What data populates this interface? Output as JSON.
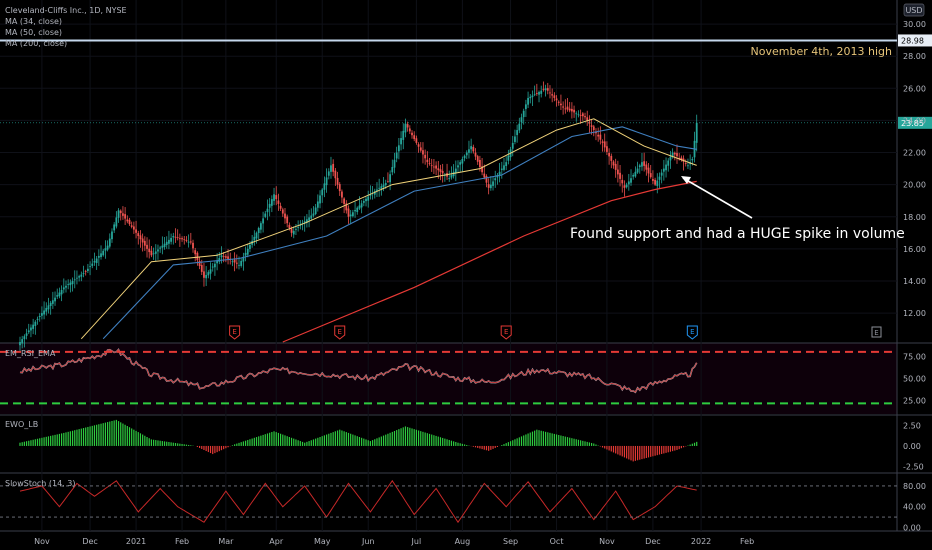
{
  "chart_data": {
    "type": "candlestick",
    "instrument": "Cleveland-Cliffs Inc., 1D, NYSE",
    "currency": "USD",
    "overlays": [
      "MA (34, close)",
      "MA (50, close)",
      "MA (200, close)"
    ],
    "x_ticks": [
      "Nov",
      "Dec",
      "2021",
      "Feb",
      "Mar",
      "Apr",
      "May",
      "Jun",
      "Jul",
      "Aug",
      "Sep",
      "Oct",
      "Nov",
      "Dec",
      "2022",
      "Feb"
    ],
    "main": {
      "y_ticks": [
        30,
        28,
        26,
        24,
        22,
        20,
        18,
        16,
        14,
        12
      ],
      "y_tick_labels": [
        "30.00",
        "28.00",
        "26.00",
        "24.00",
        "22.00",
        "20.00",
        "18.00",
        "16.00",
        "14.00",
        "12.00"
      ],
      "ylim": [
        10.2,
        31.5
      ],
      "last_price": 23.85,
      "last_price_label": "23.85",
      "resistance": 28.98,
      "resistance_label": "28.98",
      "resistance_annotation": "November 4th, 2013 high",
      "support_annotation": "Found support and had a HUGE spike in volume",
      "earnings_marker": "E",
      "keypoints": [
        {
          "d": 0,
          "close": 10.2
        },
        {
          "d": 10,
          "close": 12.0
        },
        {
          "d": 20,
          "close": 13.6
        },
        {
          "d": 30,
          "close": 14.6
        },
        {
          "d": 40,
          "close": 16.2
        },
        {
          "d": 45,
          "close": 18.4
        },
        {
          "d": 52,
          "close": 17.2
        },
        {
          "d": 60,
          "close": 15.6
        },
        {
          "d": 70,
          "close": 16.8
        },
        {
          "d": 78,
          "close": 16.4
        },
        {
          "d": 84,
          "close": 14.2
        },
        {
          "d": 92,
          "close": 15.6
        },
        {
          "d": 100,
          "close": 15.0
        },
        {
          "d": 108,
          "close": 17.0
        },
        {
          "d": 116,
          "close": 19.4
        },
        {
          "d": 124,
          "close": 17.0
        },
        {
          "d": 134,
          "close": 18.2
        },
        {
          "d": 142,
          "close": 21.2
        },
        {
          "d": 150,
          "close": 18.0
        },
        {
          "d": 160,
          "close": 19.4
        },
        {
          "d": 168,
          "close": 20.2
        },
        {
          "d": 176,
          "close": 23.8
        },
        {
          "d": 186,
          "close": 21.4
        },
        {
          "d": 196,
          "close": 20.4
        },
        {
          "d": 206,
          "close": 22.4
        },
        {
          "d": 214,
          "close": 19.8
        },
        {
          "d": 222,
          "close": 21.4
        },
        {
          "d": 232,
          "close": 25.4
        },
        {
          "d": 240,
          "close": 26.0
        },
        {
          "d": 248,
          "close": 24.8
        },
        {
          "d": 258,
          "close": 24.2
        },
        {
          "d": 266,
          "close": 22.6
        },
        {
          "d": 276,
          "close": 19.8
        },
        {
          "d": 284,
          "close": 21.4
        },
        {
          "d": 290,
          "close": 20.0
        },
        {
          "d": 298,
          "close": 22.0
        },
        {
          "d": 305,
          "close": 21.2
        },
        {
          "d": 307,
          "close": 21.6
        },
        {
          "d": 309,
          "close": 23.85
        }
      ],
      "ma34": [
        {
          "d": 28,
          "v": 10.4
        },
        {
          "d": 60,
          "v": 15.2
        },
        {
          "d": 90,
          "v": 15.6
        },
        {
          "d": 130,
          "v": 17.6
        },
        {
          "d": 170,
          "v": 20.0
        },
        {
          "d": 210,
          "v": 21.0
        },
        {
          "d": 245,
          "v": 23.4
        },
        {
          "d": 262,
          "v": 24.1
        },
        {
          "d": 285,
          "v": 22.4
        },
        {
          "d": 309,
          "v": 21.2
        }
      ],
      "ma50": [
        {
          "d": 38,
          "v": 10.4
        },
        {
          "d": 70,
          "v": 15.0
        },
        {
          "d": 100,
          "v": 15.4
        },
        {
          "d": 140,
          "v": 16.8
        },
        {
          "d": 180,
          "v": 19.6
        },
        {
          "d": 220,
          "v": 20.6
        },
        {
          "d": 252,
          "v": 23.0
        },
        {
          "d": 275,
          "v": 23.6
        },
        {
          "d": 300,
          "v": 22.4
        },
        {
          "d": 309,
          "v": 22.2
        }
      ],
      "ma200": [
        {
          "d": 120,
          "v": 10.2
        },
        {
          "d": 180,
          "v": 13.6
        },
        {
          "d": 230,
          "v": 16.8
        },
        {
          "d": 270,
          "v": 19.0
        },
        {
          "d": 290,
          "v": 19.7
        },
        {
          "d": 309,
          "v": 20.2
        }
      ],
      "earnings_days": [
        98,
        146,
        222,
        307
      ]
    },
    "rsi": {
      "legend": "EM_RSI_EMA",
      "y_ticks": [
        75,
        50,
        25
      ],
      "y_tick_labels": [
        "75.00",
        "50.00",
        "25.00"
      ],
      "ylim": [
        10,
        90
      ],
      "upper": 80,
      "lower": 22,
      "keypoints": [
        {
          "d": 0,
          "v": 58
        },
        {
          "d": 20,
          "v": 66
        },
        {
          "d": 44,
          "v": 82
        },
        {
          "d": 60,
          "v": 54
        },
        {
          "d": 84,
          "v": 40
        },
        {
          "d": 100,
          "v": 50
        },
        {
          "d": 116,
          "v": 60
        },
        {
          "d": 140,
          "v": 55
        },
        {
          "d": 160,
          "v": 50
        },
        {
          "d": 176,
          "v": 64
        },
        {
          "d": 200,
          "v": 50
        },
        {
          "d": 214,
          "v": 46
        },
        {
          "d": 236,
          "v": 60
        },
        {
          "d": 260,
          "v": 52
        },
        {
          "d": 280,
          "v": 36
        },
        {
          "d": 296,
          "v": 50
        },
        {
          "d": 306,
          "v": 55
        },
        {
          "d": 309,
          "v": 65
        }
      ]
    },
    "ewo": {
      "legend": "EWO_LB",
      "y_ticks": [
        2.5,
        0,
        -2.5
      ],
      "y_tick_labels": [
        "2.50",
        "0.00",
        "-2.50"
      ],
      "ylim": [
        -3.2,
        3.8
      ],
      "keypoints": [
        {
          "d": 0,
          "v": 0.4
        },
        {
          "d": 20,
          "v": 1.6
        },
        {
          "d": 44,
          "v": 3.2
        },
        {
          "d": 60,
          "v": 0.8
        },
        {
          "d": 80,
          "v": 0.0
        },
        {
          "d": 88,
          "v": -1.0
        },
        {
          "d": 98,
          "v": 0.2
        },
        {
          "d": 116,
          "v": 1.8
        },
        {
          "d": 130,
          "v": 0.4
        },
        {
          "d": 146,
          "v": 2.0
        },
        {
          "d": 160,
          "v": 0.6
        },
        {
          "d": 176,
          "v": 2.4
        },
        {
          "d": 200,
          "v": 0.4
        },
        {
          "d": 214,
          "v": -0.6
        },
        {
          "d": 236,
          "v": 2.0
        },
        {
          "d": 262,
          "v": 0.3
        },
        {
          "d": 280,
          "v": -1.9
        },
        {
          "d": 300,
          "v": -0.5
        },
        {
          "d": 309,
          "v": 0.5
        }
      ]
    },
    "stoch": {
      "legend": "SlowStoch (14, 3)",
      "y_ticks": [
        80,
        40,
        0
      ],
      "y_tick_labels": [
        "80.00",
        "40.00",
        "0.00"
      ],
      "ylim": [
        -5,
        105
      ],
      "upper": 80,
      "lower": 20,
      "keypoints": [
        {
          "d": 0,
          "v": 70
        },
        {
          "d": 10,
          "v": 80
        },
        {
          "d": 18,
          "v": 40
        },
        {
          "d": 26,
          "v": 85
        },
        {
          "d": 34,
          "v": 60
        },
        {
          "d": 44,
          "v": 90
        },
        {
          "d": 54,
          "v": 30
        },
        {
          "d": 64,
          "v": 75
        },
        {
          "d": 72,
          "v": 40
        },
        {
          "d": 84,
          "v": 10
        },
        {
          "d": 94,
          "v": 70
        },
        {
          "d": 102,
          "v": 25
        },
        {
          "d": 112,
          "v": 85
        },
        {
          "d": 120,
          "v": 40
        },
        {
          "d": 130,
          "v": 80
        },
        {
          "d": 140,
          "v": 20
        },
        {
          "d": 150,
          "v": 85
        },
        {
          "d": 160,
          "v": 30
        },
        {
          "d": 170,
          "v": 90
        },
        {
          "d": 180,
          "v": 25
        },
        {
          "d": 190,
          "v": 75
        },
        {
          "d": 200,
          "v": 10
        },
        {
          "d": 212,
          "v": 85
        },
        {
          "d": 222,
          "v": 40
        },
        {
          "d": 232,
          "v": 88
        },
        {
          "d": 242,
          "v": 30
        },
        {
          "d": 252,
          "v": 75
        },
        {
          "d": 262,
          "v": 15
        },
        {
          "d": 272,
          "v": 70
        },
        {
          "d": 280,
          "v": 15
        },
        {
          "d": 290,
          "v": 40
        },
        {
          "d": 300,
          "v": 80
        },
        {
          "d": 309,
          "v": 72
        }
      ]
    }
  }
}
